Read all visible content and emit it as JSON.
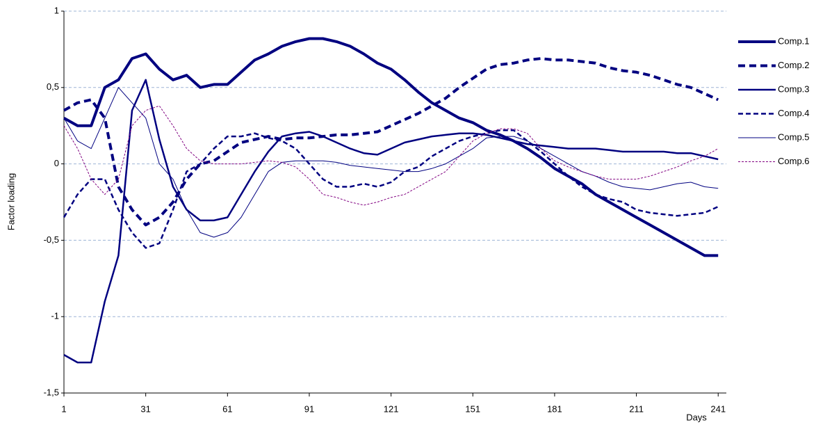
{
  "chart_data": {
    "type": "line",
    "y_label": "Factor loading",
    "x_label": "Days",
    "x": [
      1,
      6,
      11,
      16,
      21,
      26,
      31,
      36,
      41,
      46,
      51,
      56,
      61,
      66,
      71,
      76,
      81,
      86,
      91,
      96,
      101,
      106,
      111,
      116,
      121,
      126,
      131,
      136,
      141,
      146,
      151,
      156,
      161,
      166,
      171,
      176,
      181,
      186,
      191,
      196,
      201,
      206,
      211,
      216,
      221,
      226,
      231,
      236,
      241
    ],
    "xlim": [
      1,
      244
    ],
    "xticks": [
      1,
      31,
      61,
      91,
      121,
      151,
      181,
      211,
      241
    ],
    "ylim": [
      -1.5,
      1
    ],
    "yticks": [
      {
        "value": -1.5,
        "label": "-1,5"
      },
      -1,
      {
        "value": -0.5,
        "label": "-0,5"
      },
      0,
      {
        "value": 0.5,
        "label": "0,5"
      },
      1
    ],
    "grid": true,
    "legend": "right",
    "series": [
      {
        "name": "Comp.1",
        "color": "#000080",
        "line_width": 4,
        "dash": false,
        "values": [
          0.3,
          0.25,
          0.25,
          0.5,
          0.55,
          0.69,
          0.72,
          0.62,
          0.55,
          0.58,
          0.5,
          0.52,
          0.52,
          0.6,
          0.68,
          0.72,
          0.77,
          0.8,
          0.82,
          0.82,
          0.8,
          0.77,
          0.72,
          0.66,
          0.62,
          0.55,
          0.47,
          0.4,
          0.35,
          0.3,
          0.27,
          0.22,
          0.19,
          0.15,
          0.1,
          0.04,
          -0.03,
          -0.08,
          -0.13,
          -0.2,
          -0.25,
          -0.3,
          -0.35,
          -0.4,
          -0.45,
          -0.5,
          -0.55,
          -0.6,
          -0.6
        ]
      },
      {
        "name": "Comp.2",
        "color": "#000080",
        "line_width": 4,
        "dash": true,
        "values": [
          0.35,
          0.4,
          0.42,
          0.3,
          -0.15,
          -0.3,
          -0.4,
          -0.35,
          -0.25,
          -0.1,
          0,
          0.02,
          0.08,
          0.14,
          0.16,
          0.18,
          0.16,
          0.17,
          0.17,
          0.18,
          0.19,
          0.19,
          0.2,
          0.21,
          0.25,
          0.29,
          0.33,
          0.38,
          0.43,
          0.5,
          0.56,
          0.62,
          0.65,
          0.66,
          0.68,
          0.69,
          0.68,
          0.68,
          0.67,
          0.66,
          0.63,
          0.61,
          0.6,
          0.58,
          0.55,
          0.52,
          0.5,
          0.46,
          0.42
        ]
      },
      {
        "name": "Comp.3",
        "color": "#000080",
        "line_width": 2.5,
        "dash": false,
        "values": [
          -1.25,
          -1.3,
          -1.3,
          -0.9,
          -0.6,
          0.35,
          0.55,
          0.16,
          -0.15,
          -0.3,
          -0.37,
          -0.37,
          -0.35,
          -0.2,
          -0.05,
          0.08,
          0.18,
          0.2,
          0.21,
          0.18,
          0.14,
          0.1,
          0.07,
          0.06,
          0.1,
          0.14,
          0.16,
          0.18,
          0.19,
          0.2,
          0.2,
          0.19,
          0.17,
          0.15,
          0.13,
          0.12,
          0.11,
          0.1,
          0.1,
          0.1,
          0.09,
          0.08,
          0.08,
          0.08,
          0.08,
          0.07,
          0.07,
          0.05,
          0.03
        ]
      },
      {
        "name": "Comp.4",
        "color": "#000080",
        "line_width": 2.5,
        "dash": true,
        "values": [
          -0.35,
          -0.2,
          -0.1,
          -0.1,
          -0.3,
          -0.45,
          -0.55,
          -0.52,
          -0.3,
          -0.05,
          0,
          0.1,
          0.18,
          0.18,
          0.2,
          0.17,
          0.15,
          0.1,
          0,
          -0.1,
          -0.15,
          -0.15,
          -0.13,
          -0.15,
          -0.12,
          -0.05,
          -0.02,
          0.05,
          0.1,
          0.15,
          0.18,
          0.2,
          0.22,
          0.22,
          0.15,
          0.08,
          0,
          -0.08,
          -0.15,
          -0.2,
          -0.23,
          -0.25,
          -0.3,
          -0.32,
          -0.33,
          -0.34,
          -0.33,
          -0.32,
          -0.28
        ]
      },
      {
        "name": "Comp.5",
        "color": "#000080",
        "line_width": 1,
        "dash": false,
        "values": [
          0.3,
          0.15,
          0.1,
          0.3,
          0.5,
          0.4,
          0.3,
          0,
          -0.1,
          -0.3,
          -0.45,
          -0.48,
          -0.45,
          -0.35,
          -0.2,
          -0.05,
          0.01,
          0.02,
          0.02,
          0.02,
          0.01,
          -0.01,
          -0.02,
          -0.03,
          -0.04,
          -0.05,
          -0.05,
          -0.03,
          0,
          0.05,
          0.1,
          0.17,
          0.18,
          0.18,
          0.15,
          0.1,
          0.05,
          0,
          -0.05,
          -0.08,
          -0.12,
          -0.15,
          -0.16,
          -0.17,
          -0.15,
          -0.13,
          -0.12,
          -0.15,
          -0.16
        ]
      },
      {
        "name": "Comp.6",
        "color": "#800080",
        "line_width": 1,
        "dash": true,
        "values": [
          0.25,
          0.1,
          -0.1,
          -0.2,
          -0.1,
          0.25,
          0.35,
          0.38,
          0.25,
          0.1,
          0.02,
          0,
          0,
          0,
          0.01,
          0.02,
          0.01,
          -0.02,
          -0.1,
          -0.2,
          -0.22,
          -0.25,
          -0.27,
          -0.25,
          -0.22,
          -0.2,
          -0.15,
          -0.1,
          -0.05,
          0.05,
          0.15,
          0.2,
          0.23,
          0.23,
          0.2,
          0.1,
          0.02,
          -0.02,
          -0.05,
          -0.08,
          -0.1,
          -0.1,
          -0.1,
          -0.08,
          -0.05,
          -0.02,
          0.02,
          0.05,
          0.1
        ]
      }
    ]
  }
}
